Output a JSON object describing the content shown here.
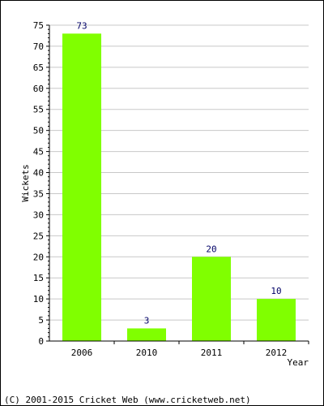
{
  "chart_data": {
    "type": "bar",
    "categories": [
      "2006",
      "2010",
      "2011",
      "2012"
    ],
    "values": [
      73,
      3,
      20,
      10
    ],
    "title": "",
    "xlabel": "Year",
    "ylabel": "Wickets",
    "ylim": [
      0,
      75
    ],
    "yticks": [
      0,
      5,
      10,
      15,
      20,
      25,
      30,
      35,
      40,
      45,
      50,
      55,
      60,
      65,
      70,
      75
    ],
    "grid": true,
    "data_labels": true,
    "colors": {
      "bar": "#80ff00",
      "grid": "#c8c8c8",
      "axis": "#000000",
      "value_label": "#000066"
    }
  },
  "footer": {
    "text": "(C) 2001-2015 Cricket Web (www.cricketweb.net)"
  }
}
